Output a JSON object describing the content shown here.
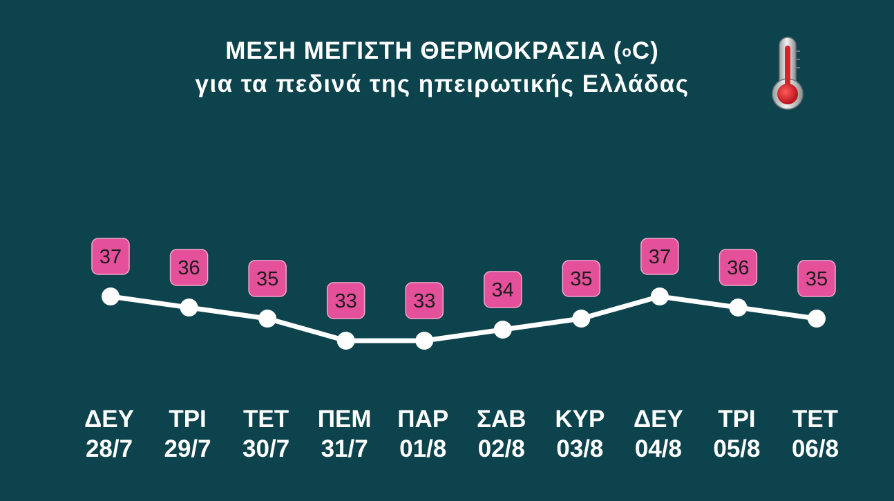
{
  "title": {
    "main_prefix": "ΜΕΣΗ ΜΕΓΙΣΤΗ ΘΕΡΜΟΚΡΑΣΙΑ (",
    "degree": "o",
    "main_suffix": "C)",
    "subtitle": "για τα πεδινά της ηπειρωτικής Ελλάδας"
  },
  "icon": "thermometer-icon",
  "colors": {
    "background": "#0c434c",
    "line": "#ffffff",
    "badge": "#e4509a",
    "badge_text": "#1c1c1c",
    "thermo_mercury": "#d8232a"
  },
  "chart_data": {
    "type": "line",
    "title": "ΜΕΣΗ ΜΕΓΙΣΤΗ ΘΕΡΜΟΚΡΑΣΙΑ (oC)",
    "subtitle": "για τα πεδινά της ηπειρωτικής Ελλάδας",
    "categories": [
      {
        "day": "ΔΕΥ",
        "date": "28/7"
      },
      {
        "day": "ΤΡΙ",
        "date": "29/7"
      },
      {
        "day": "ΤΕΤ",
        "date": "30/7"
      },
      {
        "day": "ΠΕΜ",
        "date": "31/7"
      },
      {
        "day": "ΠΑΡ",
        "date": "01/8"
      },
      {
        "day": "ΣΑΒ",
        "date": "02/8"
      },
      {
        "day": "ΚΥΡ",
        "date": "03/8"
      },
      {
        "day": "ΔΕΥ",
        "date": "04/8"
      },
      {
        "day": "ΤΡΙ",
        "date": "05/8"
      },
      {
        "day": "ΤΕΤ",
        "date": "06/8"
      }
    ],
    "values": [
      37,
      36,
      35,
      33,
      33,
      34,
      35,
      37,
      36,
      35
    ],
    "data_labels": true,
    "grid": false,
    "legend": "none"
  }
}
